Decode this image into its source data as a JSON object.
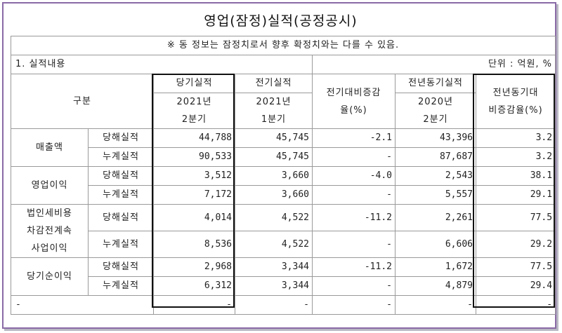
{
  "title": "영업(잠정)실적(공정공시)",
  "notice": "※ 동 정보는 잠정치로서 향후 확정치와는 다를 수 있음.",
  "section": "1. 실적내용",
  "unit": "단위 : 억원, %",
  "header": {
    "category": "구분",
    "current_label": "당기실적",
    "current_period": [
      "2021년",
      "2분기"
    ],
    "prev_label": "전기실적",
    "prev_period": [
      "2021년",
      "1분기"
    ],
    "qoq": [
      "전기대비증감",
      "율(%)"
    ],
    "yoy_label": "전년동기실적",
    "yoy_period": [
      "2020년",
      "2분기"
    ],
    "yoy_rate": [
      "전년동기대",
      "비증감율(%)"
    ]
  },
  "groups": [
    {
      "name": [
        "매출액"
      ],
      "rows": [
        {
          "type": "당해실적",
          "current": "44,788",
          "prev": "45,745",
          "qoq": "-2.1",
          "yoy_value": "43,396",
          "yoy_rate": "3.2"
        },
        {
          "type": "누계실적",
          "current": "90,533",
          "prev": "45,745",
          "qoq": "-",
          "yoy_value": "87,687",
          "yoy_rate": "3.2"
        }
      ]
    },
    {
      "name": [
        "영업이익"
      ],
      "rows": [
        {
          "type": "당해실적",
          "current": "3,512",
          "prev": "3,660",
          "qoq": "-4.0",
          "yoy_value": "2,543",
          "yoy_rate": "38.1"
        },
        {
          "type": "누계실적",
          "current": "7,172",
          "prev": "3,660",
          "qoq": "-",
          "yoy_value": "5,557",
          "yoy_rate": "29.1"
        }
      ]
    },
    {
      "name": [
        "법인세비용",
        "차감전계속",
        "사업이익"
      ],
      "rows": [
        {
          "type": "당해실적",
          "current": "4,014",
          "prev": "4,522",
          "qoq": "-11.2",
          "yoy_value": "2,261",
          "yoy_rate": "77.5"
        },
        {
          "type": "누계실적",
          "current": "8,536",
          "prev": "4,522",
          "qoq": "-",
          "yoy_value": "6,606",
          "yoy_rate": "29.2"
        }
      ]
    },
    {
      "name": [
        "당기순이익"
      ],
      "rows": [
        {
          "type": "당해실적",
          "current": "2,968",
          "prev": "3,344",
          "qoq": "-11.2",
          "yoy_value": "1,672",
          "yoy_rate": "77.5"
        },
        {
          "type": "누계실적",
          "current": "6,312",
          "prev": "3,344",
          "qoq": "-",
          "yoy_value": "4,879",
          "yoy_rate": "29.4"
        }
      ]
    }
  ],
  "last_row": [
    "-",
    "-",
    "-",
    "-",
    "-",
    "-"
  ]
}
